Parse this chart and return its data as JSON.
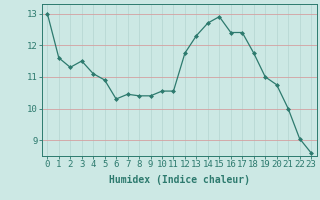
{
  "x": [
    0,
    1,
    2,
    3,
    4,
    5,
    6,
    7,
    8,
    9,
    10,
    11,
    12,
    13,
    14,
    15,
    16,
    17,
    18,
    19,
    20,
    21,
    22,
    23
  ],
  "y": [
    13.0,
    11.6,
    11.3,
    11.5,
    11.1,
    10.9,
    10.3,
    10.45,
    10.4,
    10.4,
    10.55,
    10.55,
    11.75,
    12.3,
    12.7,
    12.9,
    12.4,
    12.4,
    11.75,
    11.0,
    10.75,
    10.0,
    9.05,
    8.6
  ],
  "line_color": "#2d7a6e",
  "marker": "D",
  "marker_size": 2,
  "bg_color": "#cce8e4",
  "grid_color": "#b8d8d4",
  "grid_h_color": "#d4a0a0",
  "xlabel": "Humidex (Indice chaleur)",
  "ylim": [
    8.5,
    13.3
  ],
  "xlim": [
    -0.5,
    23.5
  ],
  "yticks": [
    9,
    10,
    11,
    12,
    13
  ],
  "xticks": [
    0,
    1,
    2,
    3,
    4,
    5,
    6,
    7,
    8,
    9,
    10,
    11,
    12,
    13,
    14,
    15,
    16,
    17,
    18,
    19,
    20,
    21,
    22,
    23
  ],
  "tick_color": "#2d7a6e",
  "label_fontsize": 7,
  "tick_fontsize": 6.5
}
